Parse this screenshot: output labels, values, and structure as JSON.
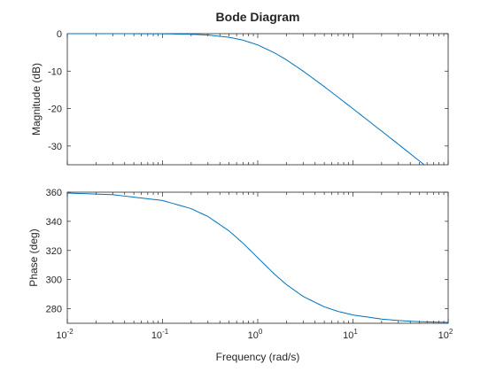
{
  "chart_data": {
    "title": "Bode Diagram",
    "xlabel": "Frequency (rad/s)",
    "x_scale": "log",
    "xlim": [
      0.01,
      100
    ],
    "x_ticks": [
      {
        "base": "10",
        "exp": "-2"
      },
      {
        "base": "10",
        "exp": "-1"
      },
      {
        "base": "10",
        "exp": "0"
      },
      {
        "base": "10",
        "exp": "1"
      },
      {
        "base": "10",
        "exp": "2"
      }
    ],
    "line_color": "#0072BD",
    "grid": false,
    "panels": [
      {
        "type": "line",
        "ylabel": "Magnitude (dB)",
        "ylim": [
          -35,
          0
        ],
        "y_ticks": [
          0,
          -10,
          -20,
          -30
        ],
        "x": [
          0.01,
          0.03,
          0.1,
          0.2,
          0.3,
          0.5,
          0.7,
          1,
          1.5,
          2,
          3,
          5,
          7,
          10,
          20,
          30,
          56
        ],
        "y": [
          0,
          0,
          -0.04,
          -0.17,
          -0.37,
          -0.97,
          -1.73,
          -3.01,
          -5.12,
          -6.99,
          -10.0,
          -14.15,
          -17.0,
          -20.04,
          -26.02,
          -29.54,
          -35.0
        ]
      },
      {
        "type": "line",
        "ylabel": "Phase (deg)",
        "ylim": [
          270,
          360
        ],
        "y_ticks": [
          280,
          300,
          320,
          340,
          360
        ],
        "x": [
          0.01,
          0.03,
          0.1,
          0.2,
          0.3,
          0.5,
          0.7,
          1,
          1.5,
          2,
          3,
          5,
          7,
          10,
          20,
          30,
          50,
          100
        ],
        "y": [
          359.4,
          358.3,
          354.3,
          348.7,
          343.3,
          333.4,
          325.0,
          315.0,
          303.7,
          296.6,
          288.4,
          281.3,
          278.1,
          275.7,
          272.9,
          271.9,
          271.1,
          270.6
        ]
      }
    ]
  }
}
